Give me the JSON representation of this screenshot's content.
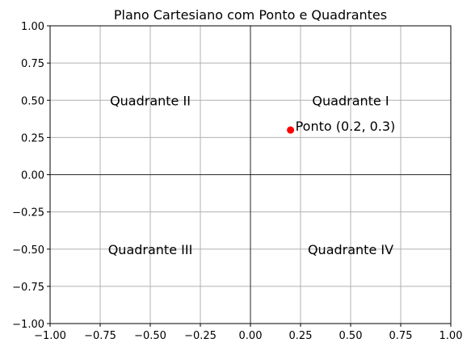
{
  "chart_data": {
    "type": "scatter",
    "title": "Plano Cartesiano com Ponto e Quadrantes",
    "xlabel": "",
    "ylabel": "",
    "xlim": [
      -1.0,
      1.0
    ],
    "ylim": [
      -1.0,
      1.0
    ],
    "xticks": [
      -1.0,
      -0.75,
      -0.5,
      -0.25,
      0.0,
      0.25,
      0.5,
      0.75,
      1.0
    ],
    "yticks": [
      -1.0,
      -0.75,
      -0.5,
      -0.25,
      0.0,
      0.25,
      0.5,
      0.75,
      1.0
    ],
    "xtick_labels": [
      "−1.00",
      "−0.75",
      "−0.50",
      "−0.25",
      "0.00",
      "0.25",
      "0.50",
      "0.75",
      "1.00"
    ],
    "ytick_labels": [
      "−1.00",
      "−0.75",
      "−0.50",
      "−0.25",
      "0.00",
      "0.25",
      "0.50",
      "0.75",
      "1.00"
    ],
    "grid": true,
    "axis_lines": {
      "x": 0,
      "y": 0,
      "color": "#000000"
    },
    "points": [
      {
        "x": 0.2,
        "y": 0.3,
        "color": "#ff0000"
      }
    ],
    "annotations": [
      {
        "text": "Quadrante I",
        "x": 0.5,
        "y": 0.5
      },
      {
        "text": "Quadrante II",
        "x": -0.5,
        "y": 0.5
      },
      {
        "text": "Quadrante III",
        "x": -0.5,
        "y": -0.5
      },
      {
        "text": "Quadrante IV",
        "x": 0.5,
        "y": -0.5
      },
      {
        "text": "Ponto (0.2, 0.3)",
        "x": 0.2,
        "y": 0.3
      }
    ],
    "colors": {
      "grid": "#b0b0b0",
      "point": "#ff0000",
      "frame": "#000000"
    }
  }
}
